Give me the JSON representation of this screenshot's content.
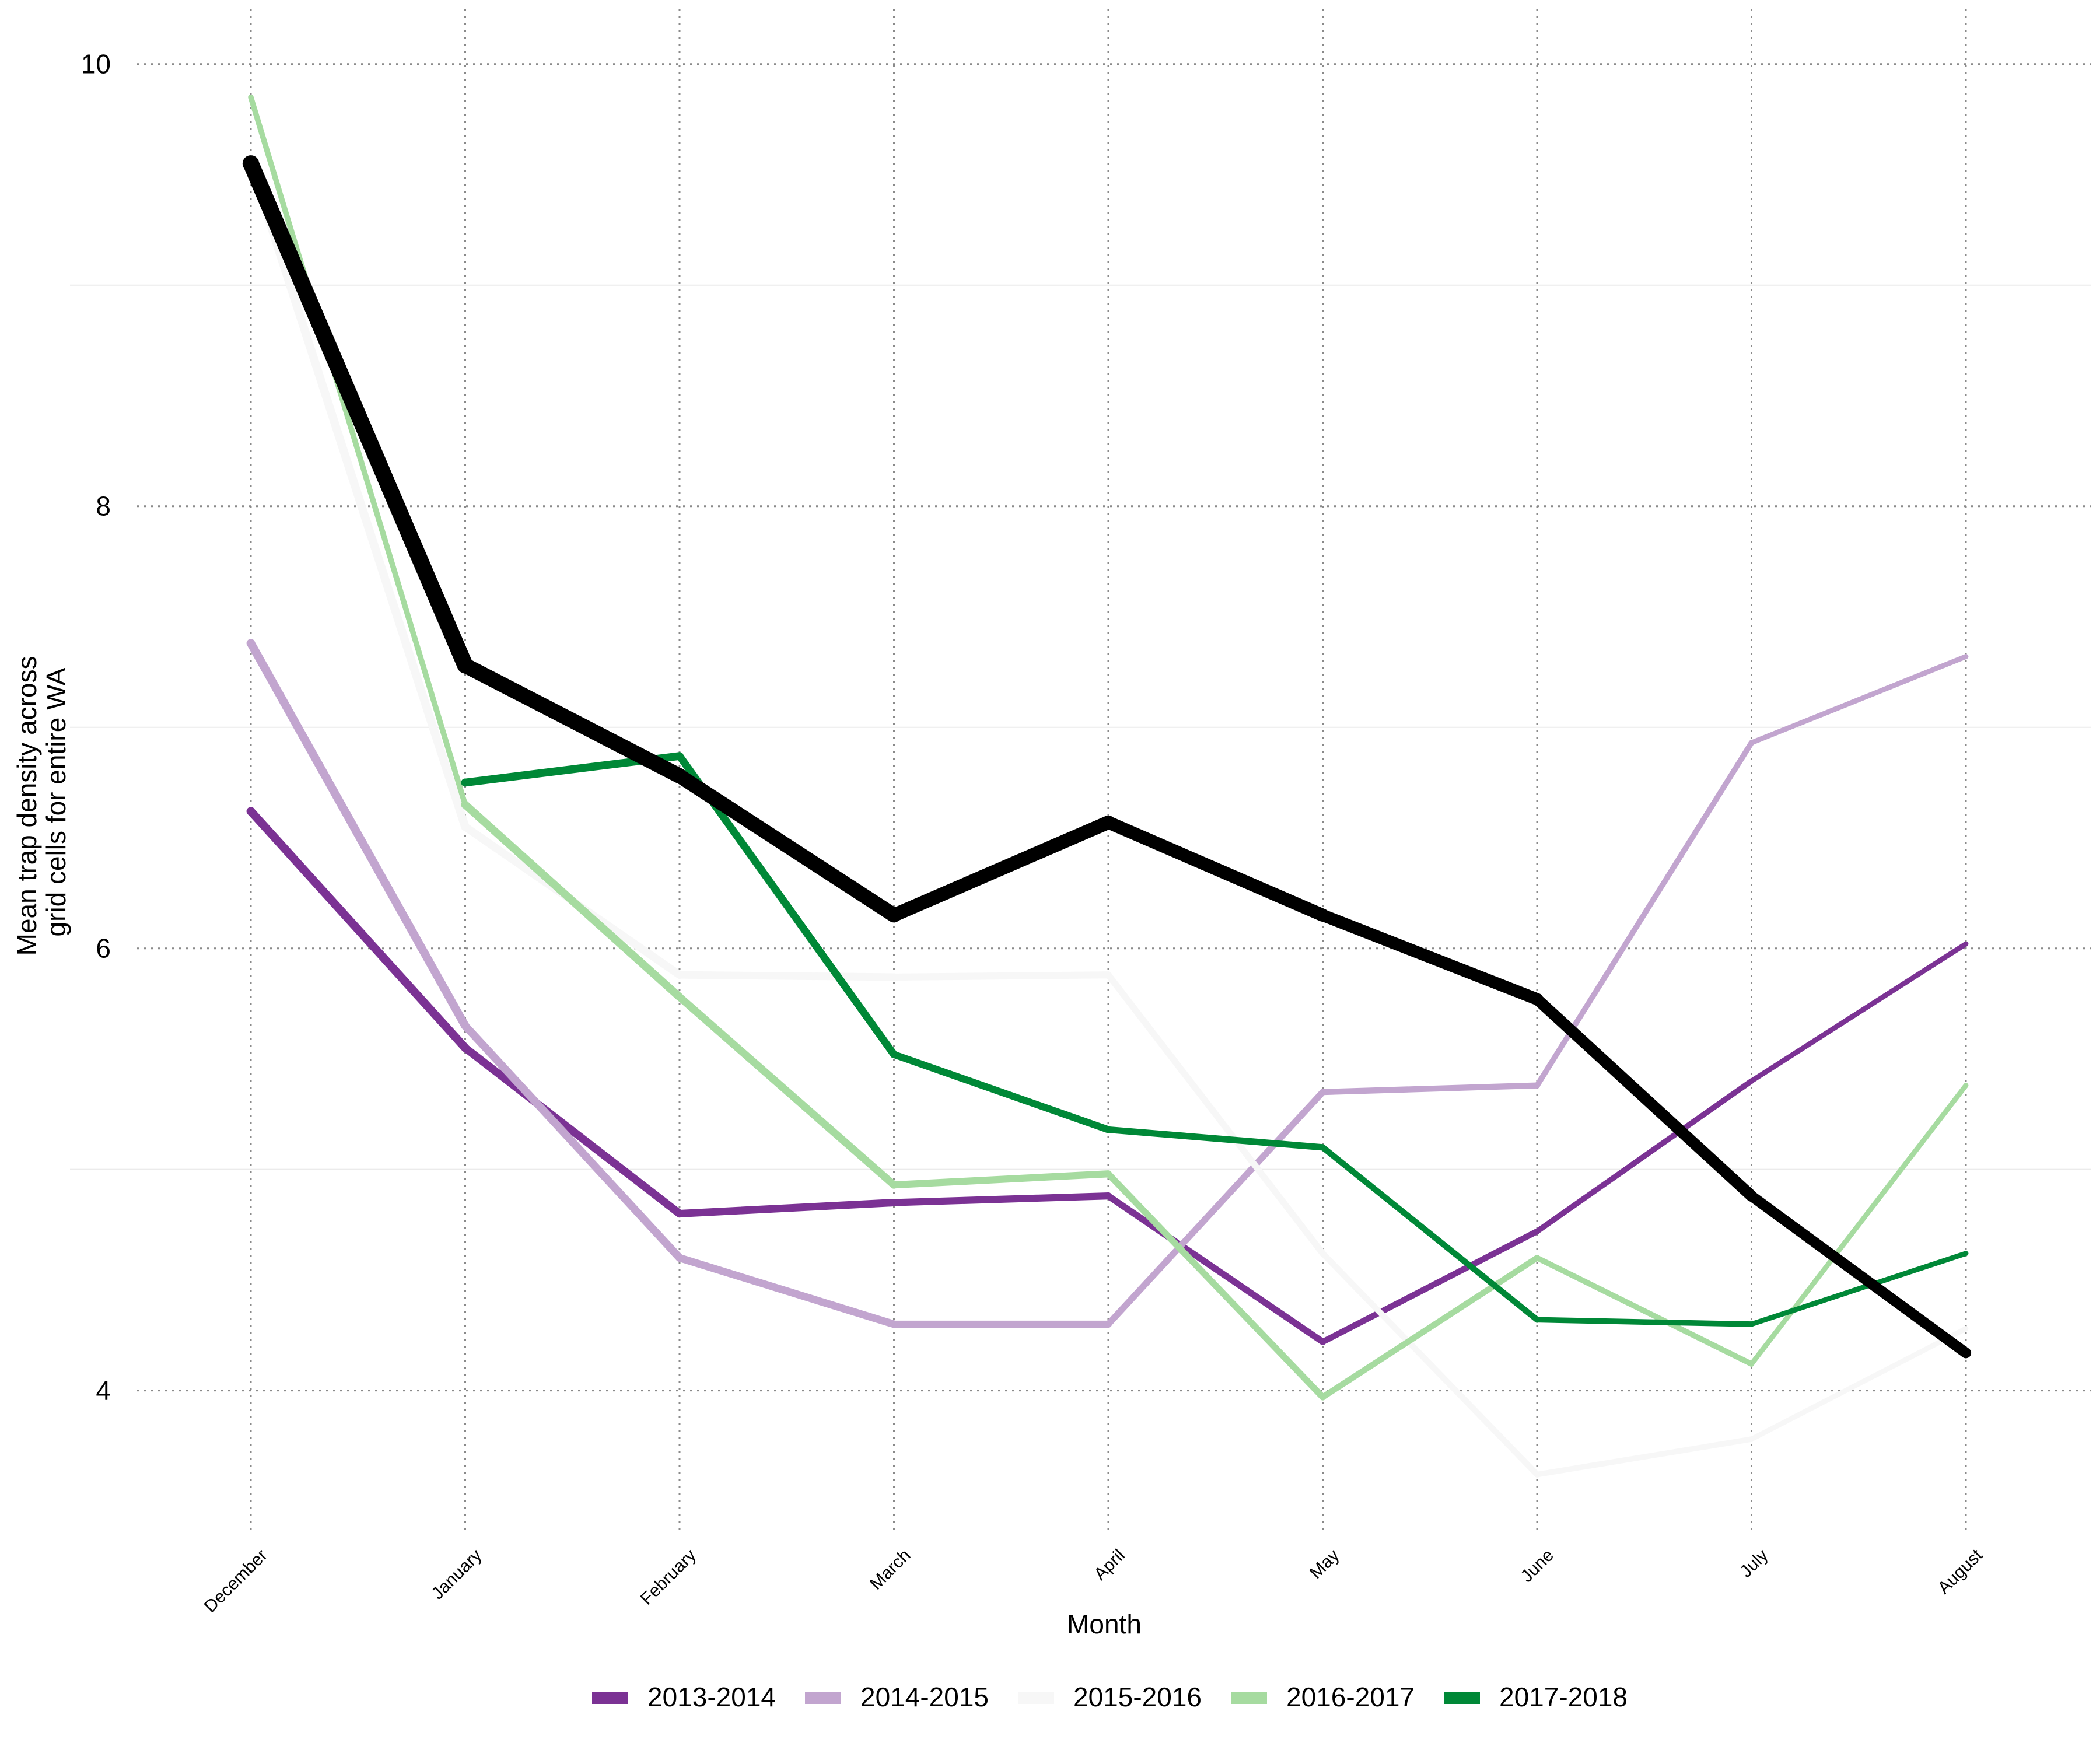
{
  "chart_data": {
    "type": "line",
    "title": "",
    "xlabel": "Month",
    "ylabel_lines": [
      "Mean trap density across",
      "grid cells for entire WA"
    ],
    "categories": [
      "December",
      "January",
      "February",
      "March",
      "April",
      "May",
      "June",
      "July",
      "August"
    ],
    "ylim": [
      3.35,
      10.25
    ],
    "yticks": [
      "4",
      "6",
      "8",
      "10"
    ],
    "ytick_values": [
      4,
      6,
      8,
      10
    ],
    "grid": true,
    "legend_position": "bottom",
    "series": [
      {
        "name": "2013-2014",
        "color": "#7b3294",
        "values": [
          6.62,
          5.55,
          4.8,
          4.85,
          4.88,
          4.22,
          4.72,
          5.4,
          6.02
        ],
        "weights": [
          5.5,
          5.2,
          4.9,
          4.7,
          4.3,
          4.0,
          3.7,
          3.4,
          3.1
        ]
      },
      {
        "name": "2014-2015",
        "color": "#c2a5cf",
        "values": [
          7.38,
          5.65,
          4.6,
          4.3,
          4.3,
          5.35,
          5.38,
          6.93,
          7.32
        ],
        "weights": [
          5.5,
          5.2,
          4.9,
          4.7,
          4.3,
          4.0,
          3.7,
          3.4,
          3.1
        ]
      },
      {
        "name": "2015-2016",
        "color": "#f7f7f7",
        "values": [
          9.55,
          6.55,
          5.88,
          5.87,
          5.88,
          4.62,
          3.62,
          3.78,
          4.28
        ],
        "weights": [
          5.5,
          5.2,
          4.9,
          4.7,
          4.3,
          4.0,
          3.7,
          3.4,
          3.1
        ]
      },
      {
        "name": "2016-2017",
        "color": "#a6dba0",
        "values": [
          9.85,
          6.65,
          5.78,
          4.93,
          4.98,
          3.97,
          4.6,
          4.12,
          5.38
        ],
        "weights": [
          1.8,
          5.2,
          4.9,
          4.7,
          4.3,
          4.0,
          3.7,
          3.4,
          3.1
        ]
      },
      {
        "name": "2017-2018",
        "color": "#008837",
        "values": [
          null,
          6.75,
          6.87,
          5.52,
          5.18,
          5.1,
          4.32,
          4.3,
          4.62
        ],
        "weights": [
          5.5,
          5.2,
          4.9,
          4.7,
          4.3,
          4.0,
          3.7,
          3.4,
          3.1
        ]
      },
      {
        "name": "",
        "color": "#000000",
        "values": [
          9.55,
          7.28,
          6.78,
          6.15,
          6.57,
          6.15,
          5.77,
          4.88,
          4.17
        ],
        "weights": [
          10.5,
          10.0,
          9.5,
          9.0,
          8.5,
          8.0,
          7.5,
          7.0,
          6.5
        ]
      }
    ]
  }
}
